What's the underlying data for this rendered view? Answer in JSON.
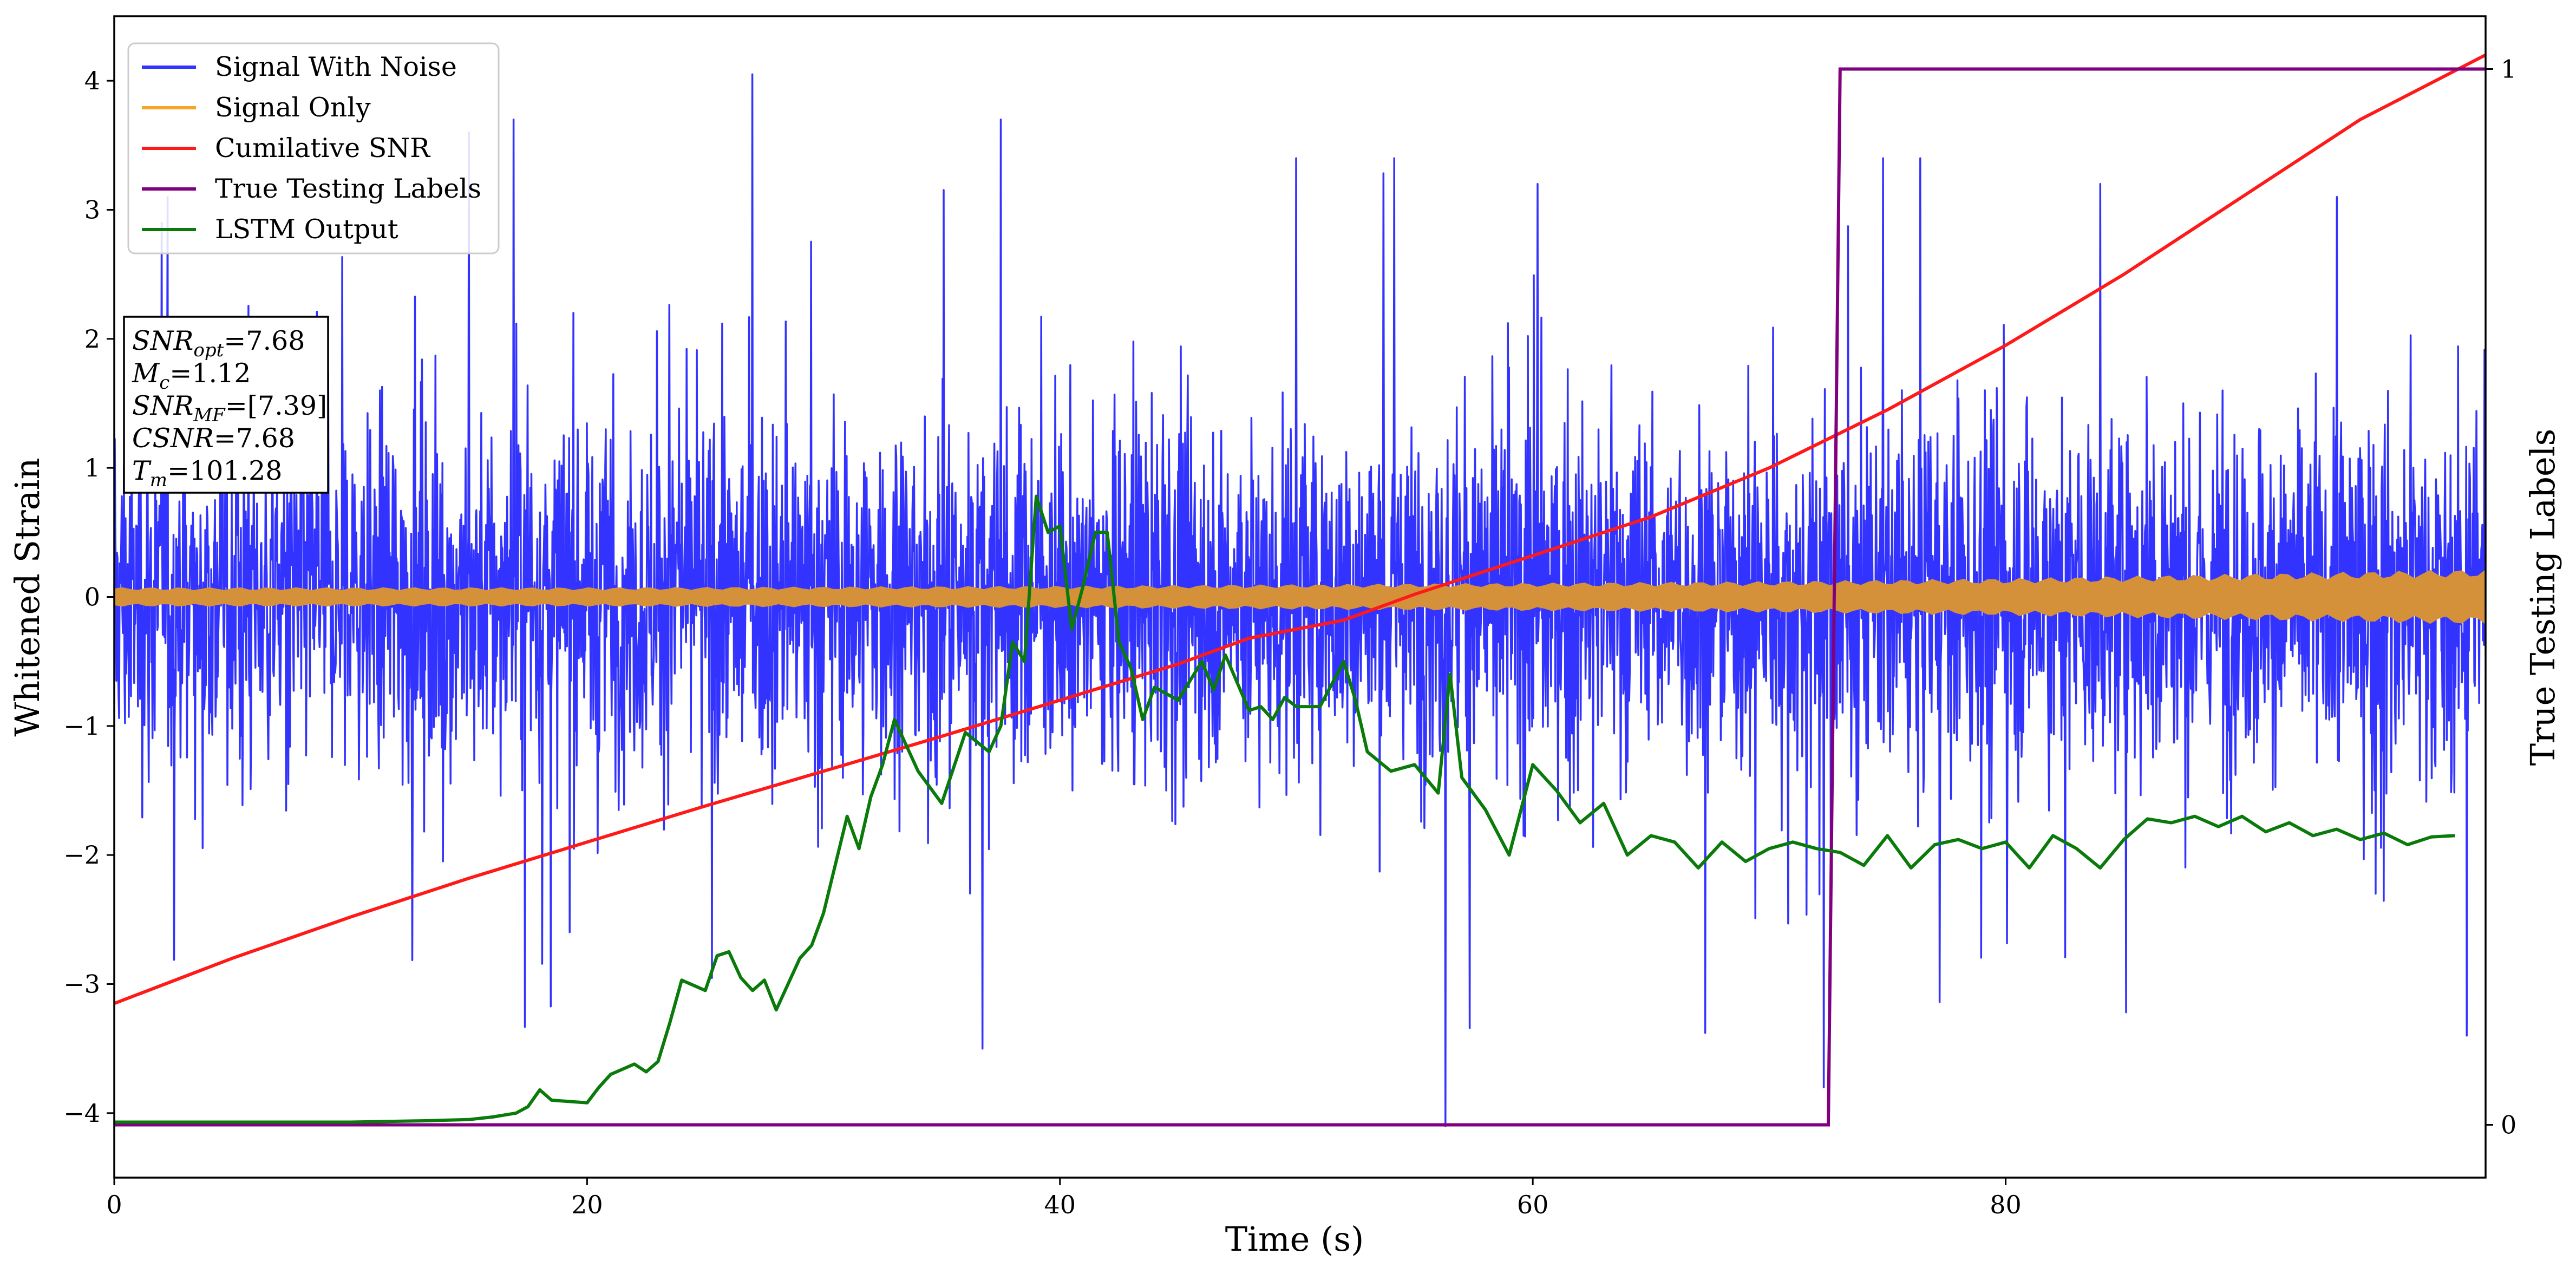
{
  "chart_data": {
    "type": "line",
    "xlabel": "Time (s)",
    "ylabel": "Whitened Strain",
    "y2label": "True Testing Labels",
    "xlim": [
      0,
      100.3
    ],
    "ylim": [
      -4.5,
      4.5
    ],
    "y2lim": [
      -0.05,
      1.05
    ],
    "xticks": [
      "0",
      "20",
      "40",
      "60",
      "80"
    ],
    "yticks": [
      "-4",
      "-3",
      "-2",
      "-1",
      "0",
      "1",
      "2",
      "3",
      "4"
    ],
    "y2ticks": [
      "0",
      "1"
    ],
    "grid": false,
    "legend_position": "top-left",
    "colors": {
      "signal_with_noise": "#3333ff",
      "signal_only": "#f5a623",
      "signal_overlap": "#d4913a",
      "cumulative_snr": "#ff1a1a",
      "true_labels": "#800080",
      "lstm_output": "#0a7a0a"
    },
    "legend": [
      {
        "label": "Signal With Noise",
        "color": "#3333ff"
      },
      {
        "label": "Signal Only",
        "color": "#f5a623"
      },
      {
        "label": "Cumilative SNR",
        "color": "#ff1a1a"
      },
      {
        "label": "True Testing Labels",
        "color": "#800080"
      },
      {
        "label": "LSTM Output",
        "color": "#0a7a0a"
      }
    ],
    "annotation": [
      {
        "base": "SNR",
        "sub": "opt",
        "value": "=7.68"
      },
      {
        "base": "M",
        "sub": "c",
        "value": "=1.12"
      },
      {
        "base": "SNR",
        "sub": "MF",
        "value": "=[7.39]"
      },
      {
        "base": "CSNR",
        "sub": "",
        "value": "=7.68"
      },
      {
        "base": "T",
        "sub": "m",
        "value": "=101.28"
      }
    ],
    "series": [
      {
        "name": "Signal With Noise",
        "axis": "left",
        "kind": "noise",
        "x_range": [
          0,
          100.3
        ],
        "typical_band": [
          -1.4,
          1.4
        ],
        "peaks": [
          [
            2,
            2.9
          ],
          [
            15,
            3.6
          ],
          [
            16.9,
            3.7
          ],
          [
            27,
            4.05
          ],
          [
            37.5,
            3.7
          ],
          [
            50,
            3.4
          ],
          [
            56.3,
            -4.1
          ],
          [
            60.2,
            3.2
          ],
          [
            72.3,
            -3.8
          ],
          [
            84,
            3.2
          ],
          [
            94,
            3.1
          ],
          [
            99.5,
            -3.4
          ]
        ]
      },
      {
        "name": "Signal Only",
        "axis": "left",
        "kind": "band",
        "x": [
          0,
          20,
          40,
          50,
          60,
          70,
          80,
          90,
          100.3
        ],
        "amplitude": [
          0.06,
          0.06,
          0.07,
          0.08,
          0.09,
          0.1,
          0.12,
          0.15,
          0.18
        ]
      },
      {
        "name": "Cumilative SNR",
        "axis": "left",
        "x": [
          0,
          5,
          10,
          15,
          20,
          25,
          30,
          35,
          40,
          45,
          48,
          52,
          55,
          60,
          65,
          70,
          75,
          80,
          85,
          90,
          95,
          100.3
        ],
        "y": [
          -3.15,
          -2.8,
          -2.48,
          -2.18,
          -1.9,
          -1.62,
          -1.35,
          -1.08,
          -0.8,
          -0.52,
          -0.32,
          -0.18,
          0.02,
          0.32,
          0.62,
          1.0,
          1.45,
          1.95,
          2.5,
          3.1,
          3.7,
          4.2
        ]
      },
      {
        "name": "True Testing Labels",
        "axis": "right",
        "x": [
          0,
          72.5,
          73.0,
          100.3
        ],
        "y": [
          0,
          0,
          1,
          1
        ]
      },
      {
        "name": "LSTM Output",
        "axis": "left",
        "x": [
          0,
          10,
          13,
          15,
          16,
          17,
          17.5,
          18,
          18.5,
          20,
          20.5,
          21,
          22,
          22.5,
          23,
          23.5,
          24,
          25,
          25.5,
          26,
          26.5,
          27,
          27.5,
          28,
          29,
          29.5,
          30,
          31,
          31.5,
          32,
          32.5,
          33,
          34,
          35,
          36,
          37,
          37.5,
          38,
          38.5,
          39,
          39.5,
          40,
          40.5,
          41,
          41.5,
          42,
          42.5,
          43,
          43.5,
          44,
          45,
          46,
          46.5,
          47,
          48,
          48.5,
          49,
          49.5,
          50,
          51,
          52,
          52.5,
          53,
          54,
          55,
          56,
          56.5,
          57,
          58,
          59,
          60,
          61,
          62,
          63,
          64,
          65,
          66,
          67,
          68,
          69,
          70,
          71,
          72,
          73,
          74,
          75,
          76,
          77,
          78,
          79,
          80,
          81,
          82,
          83,
          84,
          85,
          86,
          87,
          88,
          89,
          90,
          91,
          92,
          93,
          94,
          95,
          96,
          97,
          98,
          99
        ],
        "y": [
          -4.07,
          -4.07,
          -4.06,
          -4.05,
          -4.03,
          -4.0,
          -3.95,
          -3.82,
          -3.9,
          -3.92,
          -3.8,
          -3.7,
          -3.62,
          -3.68,
          -3.6,
          -3.3,
          -2.97,
          -3.05,
          -2.78,
          -2.75,
          -2.95,
          -3.05,
          -2.97,
          -3.2,
          -2.8,
          -2.7,
          -2.45,
          -1.7,
          -1.95,
          -1.55,
          -1.3,
          -0.95,
          -1.35,
          -1.6,
          -1.05,
          -1.2,
          -1.0,
          -0.35,
          -0.5,
          0.78,
          0.5,
          0.55,
          -0.25,
          0.1,
          0.5,
          0.5,
          -0.35,
          -0.55,
          -0.95,
          -0.7,
          -0.8,
          -0.5,
          -0.72,
          -0.45,
          -0.88,
          -0.85,
          -0.95,
          -0.78,
          -0.85,
          -0.85,
          -0.5,
          -0.8,
          -1.2,
          -1.35,
          -1.3,
          -1.52,
          -0.6,
          -1.4,
          -1.65,
          -2.0,
          -1.3,
          -1.5,
          -1.75,
          -1.6,
          -2.0,
          -1.85,
          -1.9,
          -2.1,
          -1.9,
          -2.05,
          -1.95,
          -1.9,
          -1.95,
          -1.98,
          -2.08,
          -1.85,
          -2.1,
          -1.92,
          -1.88,
          -1.95,
          -1.9,
          -2.1,
          -1.85,
          -1.95,
          -2.1,
          -1.88,
          -1.72,
          -1.75,
          -1.7,
          -1.78,
          -1.7,
          -1.82,
          -1.75,
          -1.85,
          -1.8,
          -1.88,
          -1.83,
          -1.92,
          -1.86,
          -1.85
        ]
      }
    ]
  }
}
